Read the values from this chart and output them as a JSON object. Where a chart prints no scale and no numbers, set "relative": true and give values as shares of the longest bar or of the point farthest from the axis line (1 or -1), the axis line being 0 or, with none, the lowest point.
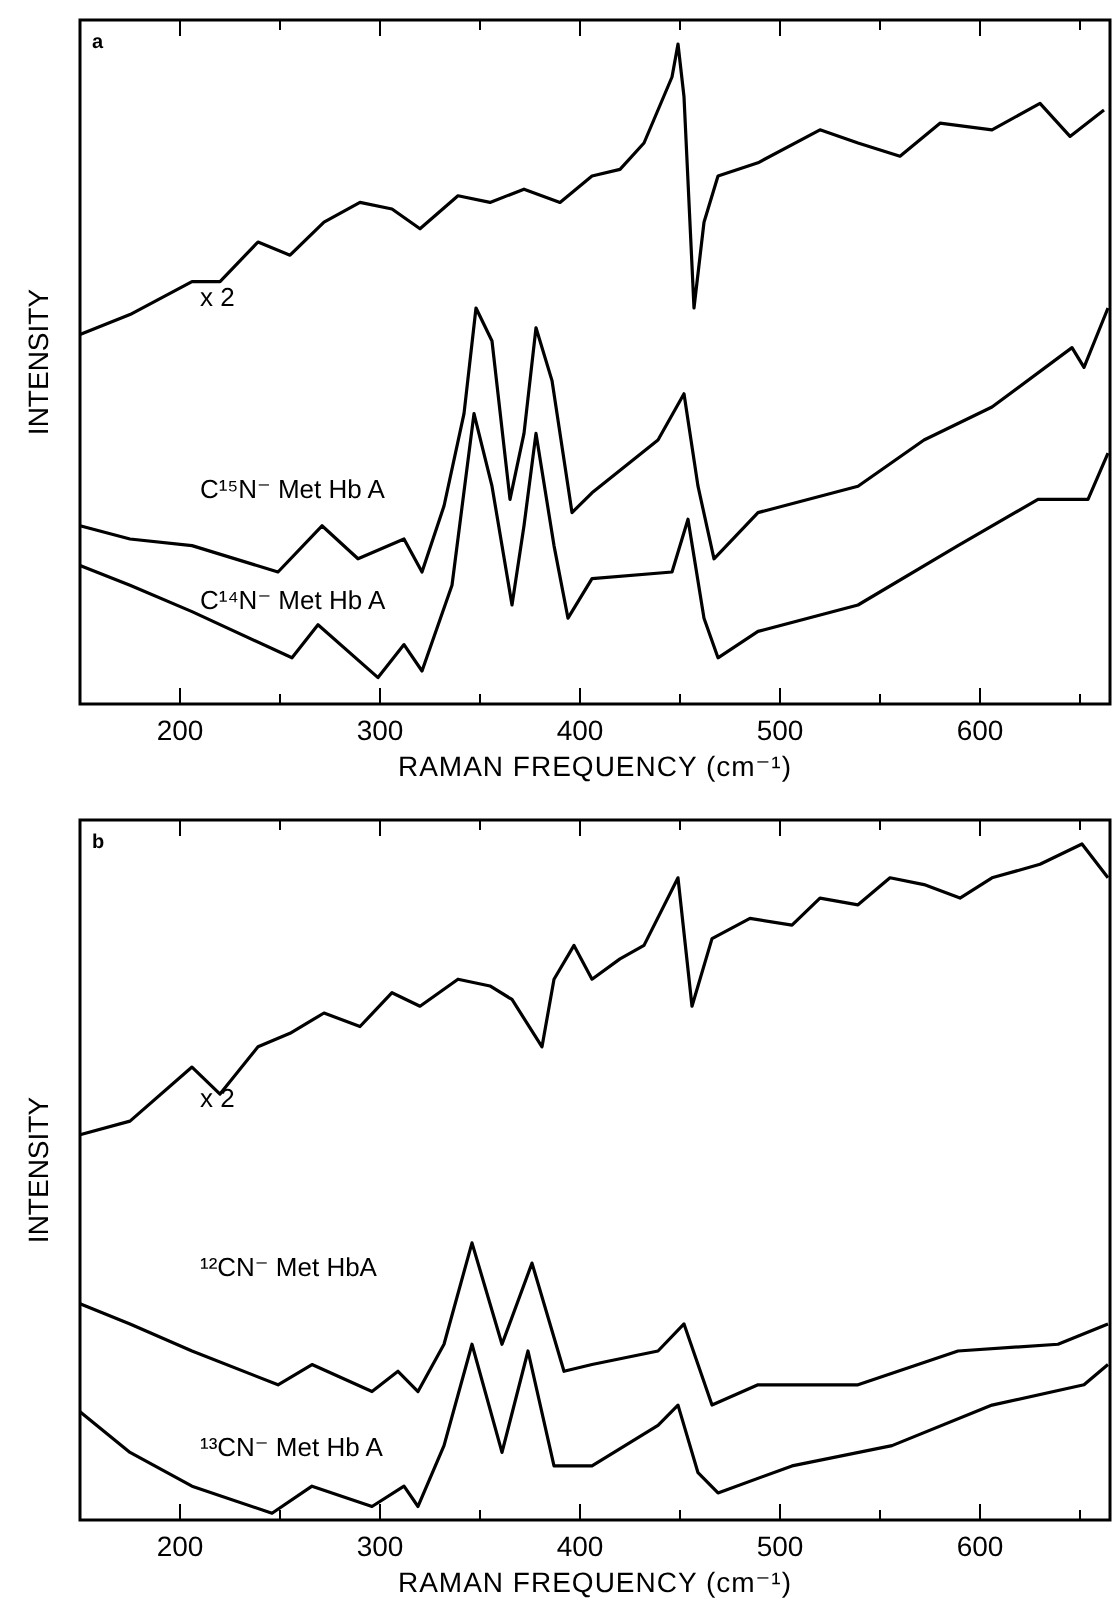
{
  "chart_data": [
    {
      "type": "line",
      "title": "a",
      "xlabel": "RAMAN FREQUENCY (cm⁻¹)",
      "ylabel": "INTENSITY",
      "relative": true,
      "xlim": [
        150,
        665
      ],
      "xticks": [
        200,
        {
          "value": 250,
          "label": null
        },
        300,
        {
          "value": 350,
          "label": null
        },
        400,
        {
          "value": 450,
          "label": null
        },
        500,
        {
          "value": 550,
          "label": null
        },
        600,
        {
          "value": 650,
          "label": null
        }
      ],
      "series": [
        {
          "name": "x 2",
          "color": "#000000",
          "x": [
            150,
            175,
            206,
            220,
            239,
            255,
            272,
            290,
            306,
            320,
            339,
            355,
            372,
            390,
            406,
            420,
            432,
            446,
            449,
            452,
            457,
            462,
            469,
            489,
            520,
            539,
            560,
            580,
            606,
            630,
            645,
            662
          ],
          "values": [
            0.56,
            0.59,
            0.64,
            0.64,
            0.7,
            0.68,
            0.73,
            0.76,
            0.75,
            0.72,
            0.77,
            0.76,
            0.78,
            0.76,
            0.8,
            0.81,
            0.85,
            0.95,
            1.0,
            0.92,
            0.6,
            0.73,
            0.8,
            0.82,
            0.87,
            0.85,
            0.83,
            0.88,
            0.87,
            0.91,
            0.86,
            0.9
          ]
        },
        {
          "name": "C¹⁵N⁻ Met Hb A",
          "color": "#000000",
          "x": [
            150,
            175,
            206,
            249,
            271,
            289,
            312,
            321,
            332,
            342,
            348,
            356,
            365,
            372,
            378,
            386,
            396,
            406,
            439,
            452,
            459,
            467,
            489,
            539,
            572,
            606,
            646,
            652,
            664
          ],
          "values": [
            0.27,
            0.25,
            0.24,
            0.2,
            0.27,
            0.22,
            0.25,
            0.2,
            0.3,
            0.44,
            0.6,
            0.55,
            0.31,
            0.41,
            0.57,
            0.49,
            0.29,
            0.32,
            0.4,
            0.47,
            0.33,
            0.22,
            0.29,
            0.33,
            0.4,
            0.45,
            0.54,
            0.51,
            0.6
          ]
        },
        {
          "name": "C¹⁴N⁻ Met Hb A",
          "color": "#000000",
          "x": [
            150,
            175,
            206,
            256,
            269,
            299,
            312,
            321,
            336,
            347,
            356,
            366,
            372,
            378,
            387,
            394,
            406,
            446,
            454,
            462,
            469,
            489,
            539,
            589,
            629,
            654,
            664
          ],
          "values": [
            0.21,
            0.18,
            0.14,
            0.07,
            0.12,
            0.04,
            0.09,
            0.05,
            0.18,
            0.44,
            0.33,
            0.15,
            0.27,
            0.41,
            0.24,
            0.13,
            0.19,
            0.2,
            0.28,
            0.13,
            0.07,
            0.11,
            0.15,
            0.24,
            0.31,
            0.31,
            0.38
          ]
        }
      ]
    },
    {
      "type": "line",
      "title": "b",
      "xlabel": "RAMAN FREQUENCY (cm⁻¹)",
      "ylabel": "INTENSITY",
      "relative": true,
      "xlim": [
        150,
        665
      ],
      "xticks": [
        200,
        {
          "value": 250,
          "label": null
        },
        300,
        {
          "value": 350,
          "label": null
        },
        400,
        {
          "value": 450,
          "label": null
        },
        500,
        {
          "value": 550,
          "label": null
        },
        600,
        {
          "value": 650,
          "label": null
        }
      ],
      "series": [
        {
          "name": "x 2",
          "color": "#000000",
          "x": [
            150,
            175,
            206,
            220,
            239,
            255,
            272,
            290,
            306,
            320,
            339,
            355,
            366,
            381,
            387,
            397,
            406,
            420,
            432,
            449,
            456,
            466,
            485,
            506,
            520,
            539,
            555,
            572,
            590,
            606,
            630,
            651,
            664
          ],
          "values": [
            0.57,
            0.59,
            0.67,
            0.63,
            0.7,
            0.72,
            0.75,
            0.73,
            0.78,
            0.76,
            0.8,
            0.79,
            0.77,
            0.7,
            0.8,
            0.85,
            0.8,
            0.83,
            0.85,
            0.95,
            0.76,
            0.86,
            0.89,
            0.88,
            0.92,
            0.91,
            0.95,
            0.94,
            0.92,
            0.95,
            0.97,
            1.0,
            0.95
          ]
        },
        {
          "name": "¹²CN⁻ Met HbA",
          "color": "#000000",
          "x": [
            150,
            175,
            206,
            249,
            266,
            296,
            309,
            319,
            332,
            346,
            361,
            376,
            392,
            406,
            439,
            452,
            466,
            489,
            539,
            589,
            639,
            664
          ],
          "values": [
            0.32,
            0.29,
            0.25,
            0.2,
            0.23,
            0.19,
            0.22,
            0.19,
            0.26,
            0.41,
            0.26,
            0.38,
            0.22,
            0.23,
            0.25,
            0.29,
            0.17,
            0.2,
            0.2,
            0.25,
            0.26,
            0.29
          ]
        },
        {
          "name": "¹³CN⁻ Met Hb A",
          "color": "#000000",
          "x": [
            150,
            175,
            206,
            246,
            266,
            296,
            312,
            319,
            332,
            346,
            361,
            374,
            387,
            406,
            439,
            449,
            459,
            469,
            506,
            556,
            606,
            652,
            664
          ],
          "values": [
            0.16,
            0.1,
            0.05,
            0.01,
            0.05,
            0.02,
            0.05,
            0.02,
            0.11,
            0.26,
            0.1,
            0.25,
            0.08,
            0.08,
            0.14,
            0.17,
            0.07,
            0.04,
            0.08,
            0.11,
            0.17,
            0.2,
            0.23
          ]
        }
      ]
    }
  ]
}
